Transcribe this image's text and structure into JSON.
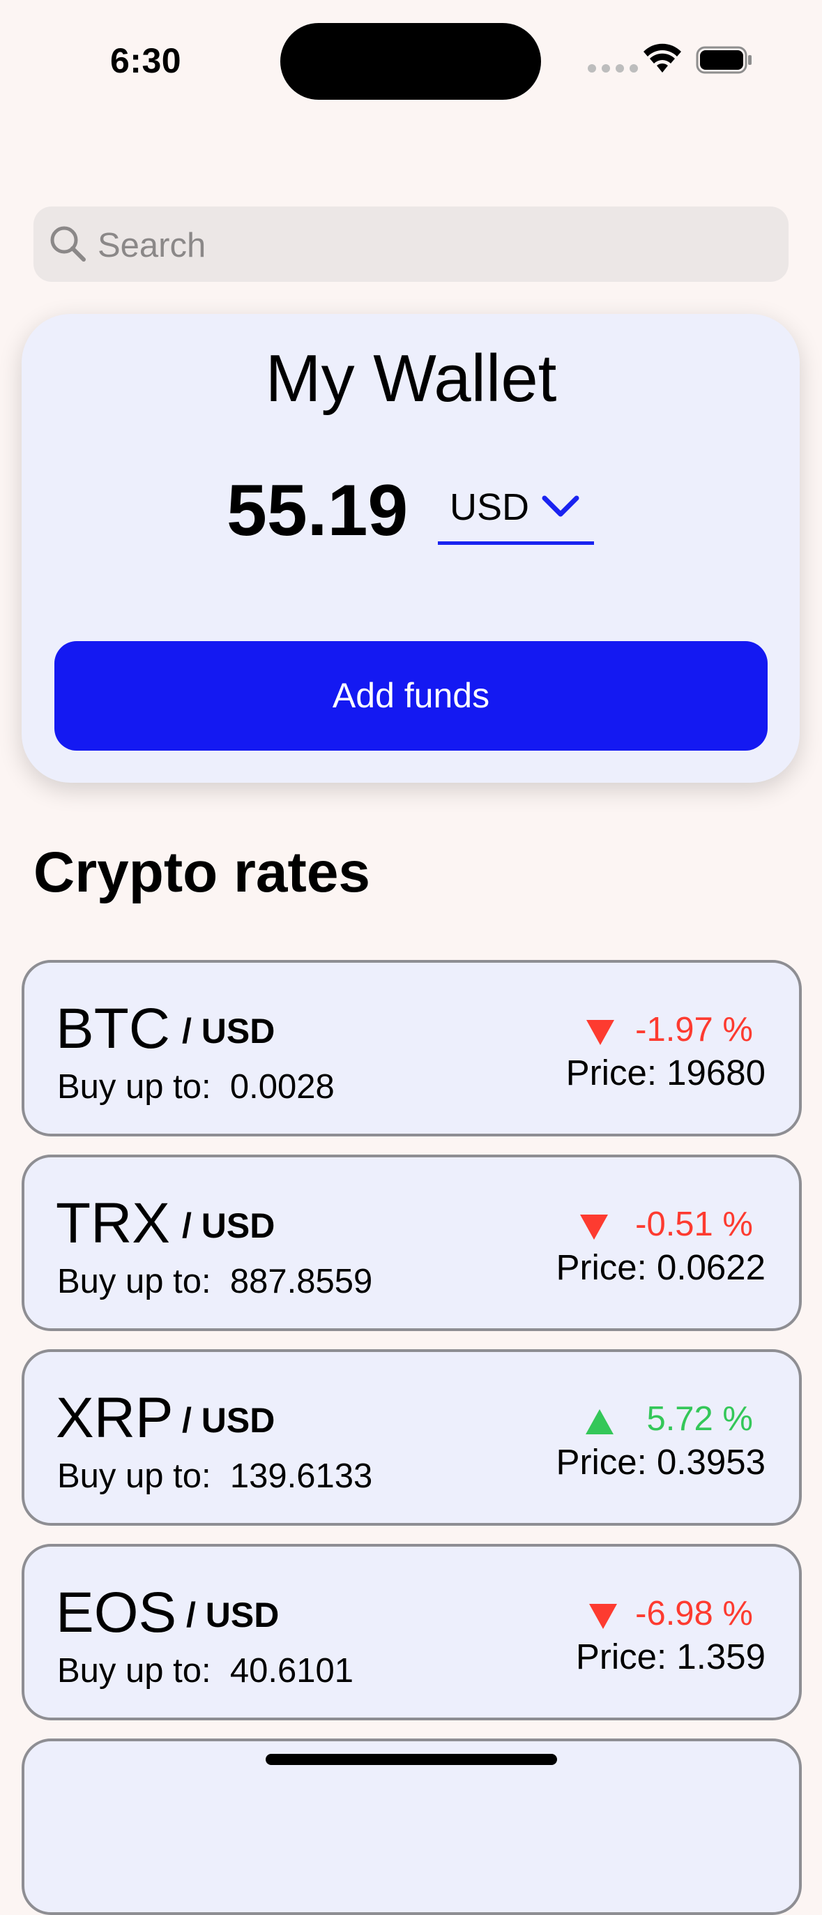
{
  "status_bar": {
    "time": "6:30"
  },
  "search": {
    "placeholder": "Search"
  },
  "wallet": {
    "title": "My Wallet",
    "amount": "55.19",
    "currency": "USD",
    "add_funds_label": "Add funds"
  },
  "rates": {
    "title": "Crypto rates",
    "items": [
      {
        "symbol": "BTC",
        "pair": "/ USD",
        "buy_label": "Buy up to:",
        "buy_value": "0.0028",
        "change": "-1.97 %",
        "direction": "down",
        "price_label": "Price:",
        "price": "19680"
      },
      {
        "symbol": "TRX",
        "pair": "/ USD",
        "buy_label": "Buy up to:",
        "buy_value": "887.8559",
        "change": "-0.51 %",
        "direction": "down",
        "price_label": "Price:",
        "price": "0.0622"
      },
      {
        "symbol": "XRP",
        "pair": "/ USD",
        "buy_label": "Buy up to:",
        "buy_value": "139.6133",
        "change": "5.72 %",
        "direction": "up",
        "price_label": "Price:",
        "price": "0.3953"
      },
      {
        "symbol": "EOS",
        "pair": "/ USD",
        "buy_label": "Buy up to:",
        "buy_value": "40.6101",
        "change": "-6.98 %",
        "direction": "down",
        "price_label": "Price:",
        "price": "1.359"
      }
    ]
  },
  "colors": {
    "accent": "#1419f2",
    "down": "#fd3b30",
    "up": "#34c759",
    "card": "#edeffc",
    "background": "#fcf5f3"
  },
  "icons": {
    "search": "magnifier-icon",
    "chevron": "chevron-down-icon",
    "wifi": "wifi-icon",
    "battery": "battery-icon",
    "down": "triangle-down-icon",
    "up": "triangle-up-icon"
  }
}
